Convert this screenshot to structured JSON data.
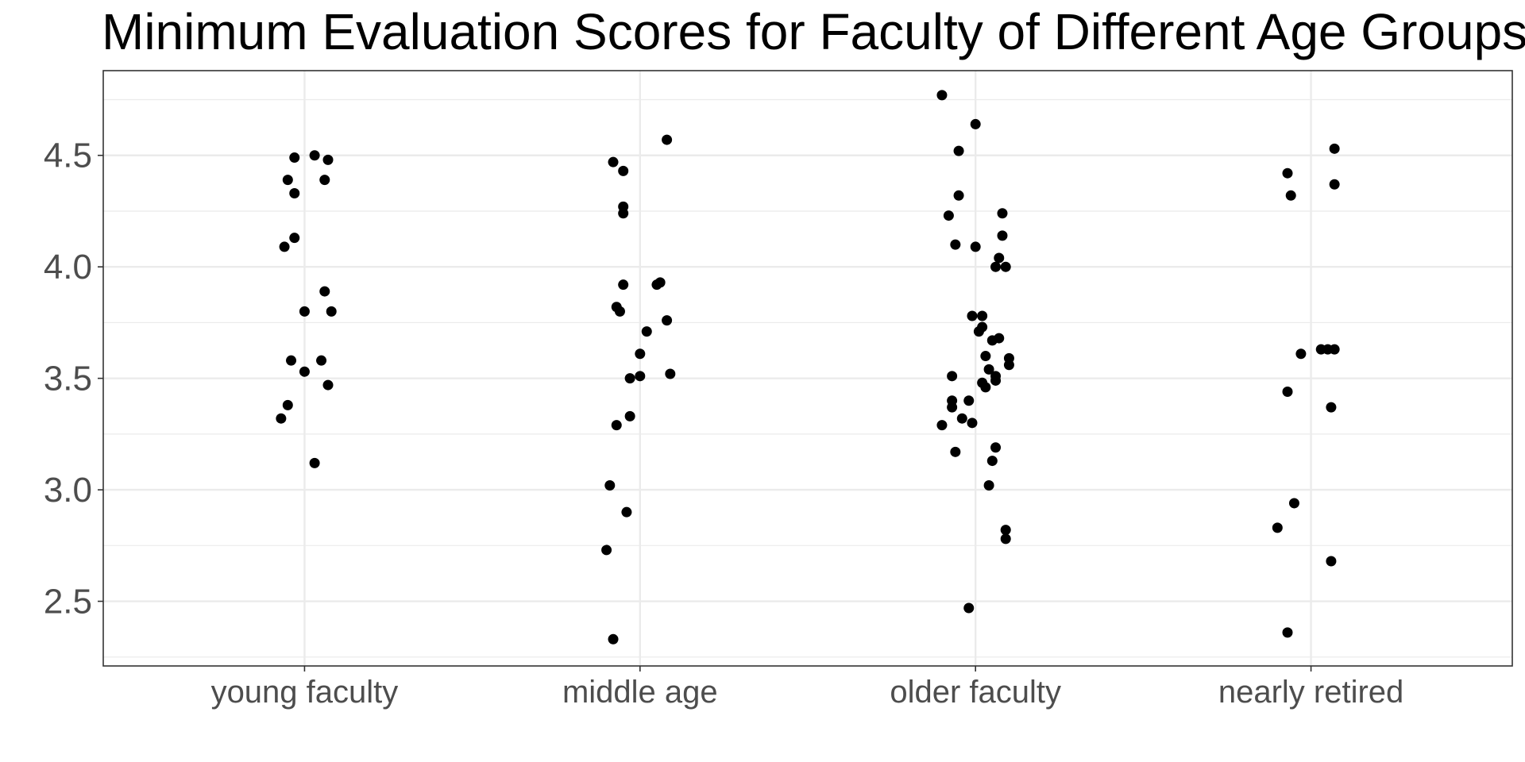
{
  "chart_data": {
    "type": "scatter",
    "title": "Minimum Evaluation Scores for Faculty of Different Age Groups",
    "xlabel": "",
    "ylabel": "",
    "categories": [
      "young faculty",
      "middle age",
      "older faculty",
      "nearly retired"
    ],
    "ylim": [
      2.21,
      4.88
    ],
    "yticks": [
      2.5,
      3.0,
      3.5,
      4.0,
      4.5
    ],
    "ytick_labels": [
      "2.5",
      "3.0",
      "3.5",
      "4.0",
      "4.5"
    ],
    "grid": true,
    "legend": "none",
    "point_color": "#000000",
    "grid_color": "#ebebeb",
    "series": [
      {
        "category": "young faculty",
        "points": [
          {
            "jitter": -0.03,
            "y": 4.49
          },
          {
            "jitter": 0.03,
            "y": 4.5
          },
          {
            "jitter": 0.07,
            "y": 4.48
          },
          {
            "jitter": -0.05,
            "y": 4.39
          },
          {
            "jitter": 0.06,
            "y": 4.39
          },
          {
            "jitter": -0.03,
            "y": 4.33
          },
          {
            "jitter": -0.03,
            "y": 4.13
          },
          {
            "jitter": -0.06,
            "y": 4.09
          },
          {
            "jitter": 0.06,
            "y": 3.89
          },
          {
            "jitter": 0.0,
            "y": 3.8
          },
          {
            "jitter": 0.08,
            "y": 3.8
          },
          {
            "jitter": -0.04,
            "y": 3.58
          },
          {
            "jitter": 0.05,
            "y": 3.58
          },
          {
            "jitter": 0.0,
            "y": 3.53
          },
          {
            "jitter": 0.07,
            "y": 3.47
          },
          {
            "jitter": -0.05,
            "y": 3.38
          },
          {
            "jitter": -0.07,
            "y": 3.32
          },
          {
            "jitter": 0.03,
            "y": 3.12
          }
        ]
      },
      {
        "category": "middle age",
        "points": [
          {
            "jitter": 0.08,
            "y": 4.57
          },
          {
            "jitter": -0.08,
            "y": 4.47
          },
          {
            "jitter": -0.05,
            "y": 4.43
          },
          {
            "jitter": -0.05,
            "y": 4.27
          },
          {
            "jitter": -0.05,
            "y": 4.24
          },
          {
            "jitter": -0.05,
            "y": 3.92
          },
          {
            "jitter": 0.05,
            "y": 3.92
          },
          {
            "jitter": 0.06,
            "y": 3.93
          },
          {
            "jitter": -0.07,
            "y": 3.82
          },
          {
            "jitter": -0.06,
            "y": 3.8
          },
          {
            "jitter": 0.08,
            "y": 3.76
          },
          {
            "jitter": 0.02,
            "y": 3.71
          },
          {
            "jitter": 0.0,
            "y": 3.61
          },
          {
            "jitter": 0.09,
            "y": 3.52
          },
          {
            "jitter": 0.0,
            "y": 3.51
          },
          {
            "jitter": -0.03,
            "y": 3.5
          },
          {
            "jitter": -0.03,
            "y": 3.33
          },
          {
            "jitter": -0.07,
            "y": 3.29
          },
          {
            "jitter": -0.09,
            "y": 3.02
          },
          {
            "jitter": -0.04,
            "y": 2.9
          },
          {
            "jitter": -0.1,
            "y": 2.73
          },
          {
            "jitter": -0.08,
            "y": 2.33
          }
        ]
      },
      {
        "category": "older faculty",
        "points": [
          {
            "jitter": -0.1,
            "y": 4.77
          },
          {
            "jitter": 0.0,
            "y": 4.64
          },
          {
            "jitter": -0.05,
            "y": 4.52
          },
          {
            "jitter": -0.05,
            "y": 4.32
          },
          {
            "jitter": 0.08,
            "y": 4.24
          },
          {
            "jitter": -0.08,
            "y": 4.23
          },
          {
            "jitter": 0.08,
            "y": 4.14
          },
          {
            "jitter": -0.06,
            "y": 4.1
          },
          {
            "jitter": 0.0,
            "y": 4.09
          },
          {
            "jitter": 0.07,
            "y": 4.04
          },
          {
            "jitter": 0.06,
            "y": 4.0
          },
          {
            "jitter": 0.09,
            "y": 4.0
          },
          {
            "jitter": -0.01,
            "y": 3.78
          },
          {
            "jitter": 0.02,
            "y": 3.78
          },
          {
            "jitter": 0.02,
            "y": 3.73
          },
          {
            "jitter": 0.01,
            "y": 3.71
          },
          {
            "jitter": 0.07,
            "y": 3.68
          },
          {
            "jitter": 0.05,
            "y": 3.67
          },
          {
            "jitter": 0.03,
            "y": 3.6
          },
          {
            "jitter": 0.1,
            "y": 3.59
          },
          {
            "jitter": 0.1,
            "y": 3.56
          },
          {
            "jitter": 0.04,
            "y": 3.54
          },
          {
            "jitter": -0.07,
            "y": 3.51
          },
          {
            "jitter": 0.06,
            "y": 3.51
          },
          {
            "jitter": 0.06,
            "y": 3.49
          },
          {
            "jitter": 0.02,
            "y": 3.48
          },
          {
            "jitter": 0.03,
            "y": 3.46
          },
          {
            "jitter": -0.07,
            "y": 3.4
          },
          {
            "jitter": -0.02,
            "y": 3.4
          },
          {
            "jitter": -0.07,
            "y": 3.37
          },
          {
            "jitter": -0.04,
            "y": 3.32
          },
          {
            "jitter": -0.01,
            "y": 3.3
          },
          {
            "jitter": -0.1,
            "y": 3.29
          },
          {
            "jitter": 0.06,
            "y": 3.19
          },
          {
            "jitter": -0.06,
            "y": 3.17
          },
          {
            "jitter": 0.05,
            "y": 3.13
          },
          {
            "jitter": 0.04,
            "y": 3.02
          },
          {
            "jitter": 0.09,
            "y": 2.82
          },
          {
            "jitter": 0.09,
            "y": 2.78
          },
          {
            "jitter": -0.02,
            "y": 2.47
          }
        ]
      },
      {
        "category": "nearly retired",
        "points": [
          {
            "jitter": 0.07,
            "y": 4.53
          },
          {
            "jitter": -0.07,
            "y": 4.42
          },
          {
            "jitter": 0.07,
            "y": 4.37
          },
          {
            "jitter": -0.06,
            "y": 4.32
          },
          {
            "jitter": 0.03,
            "y": 3.63
          },
          {
            "jitter": 0.05,
            "y": 3.63
          },
          {
            "jitter": 0.07,
            "y": 3.63
          },
          {
            "jitter": -0.03,
            "y": 3.61
          },
          {
            "jitter": -0.07,
            "y": 3.44
          },
          {
            "jitter": 0.06,
            "y": 3.37
          },
          {
            "jitter": -0.05,
            "y": 2.94
          },
          {
            "jitter": -0.1,
            "y": 2.83
          },
          {
            "jitter": 0.06,
            "y": 2.68
          },
          {
            "jitter": -0.07,
            "y": 2.36
          }
        ]
      }
    ]
  }
}
